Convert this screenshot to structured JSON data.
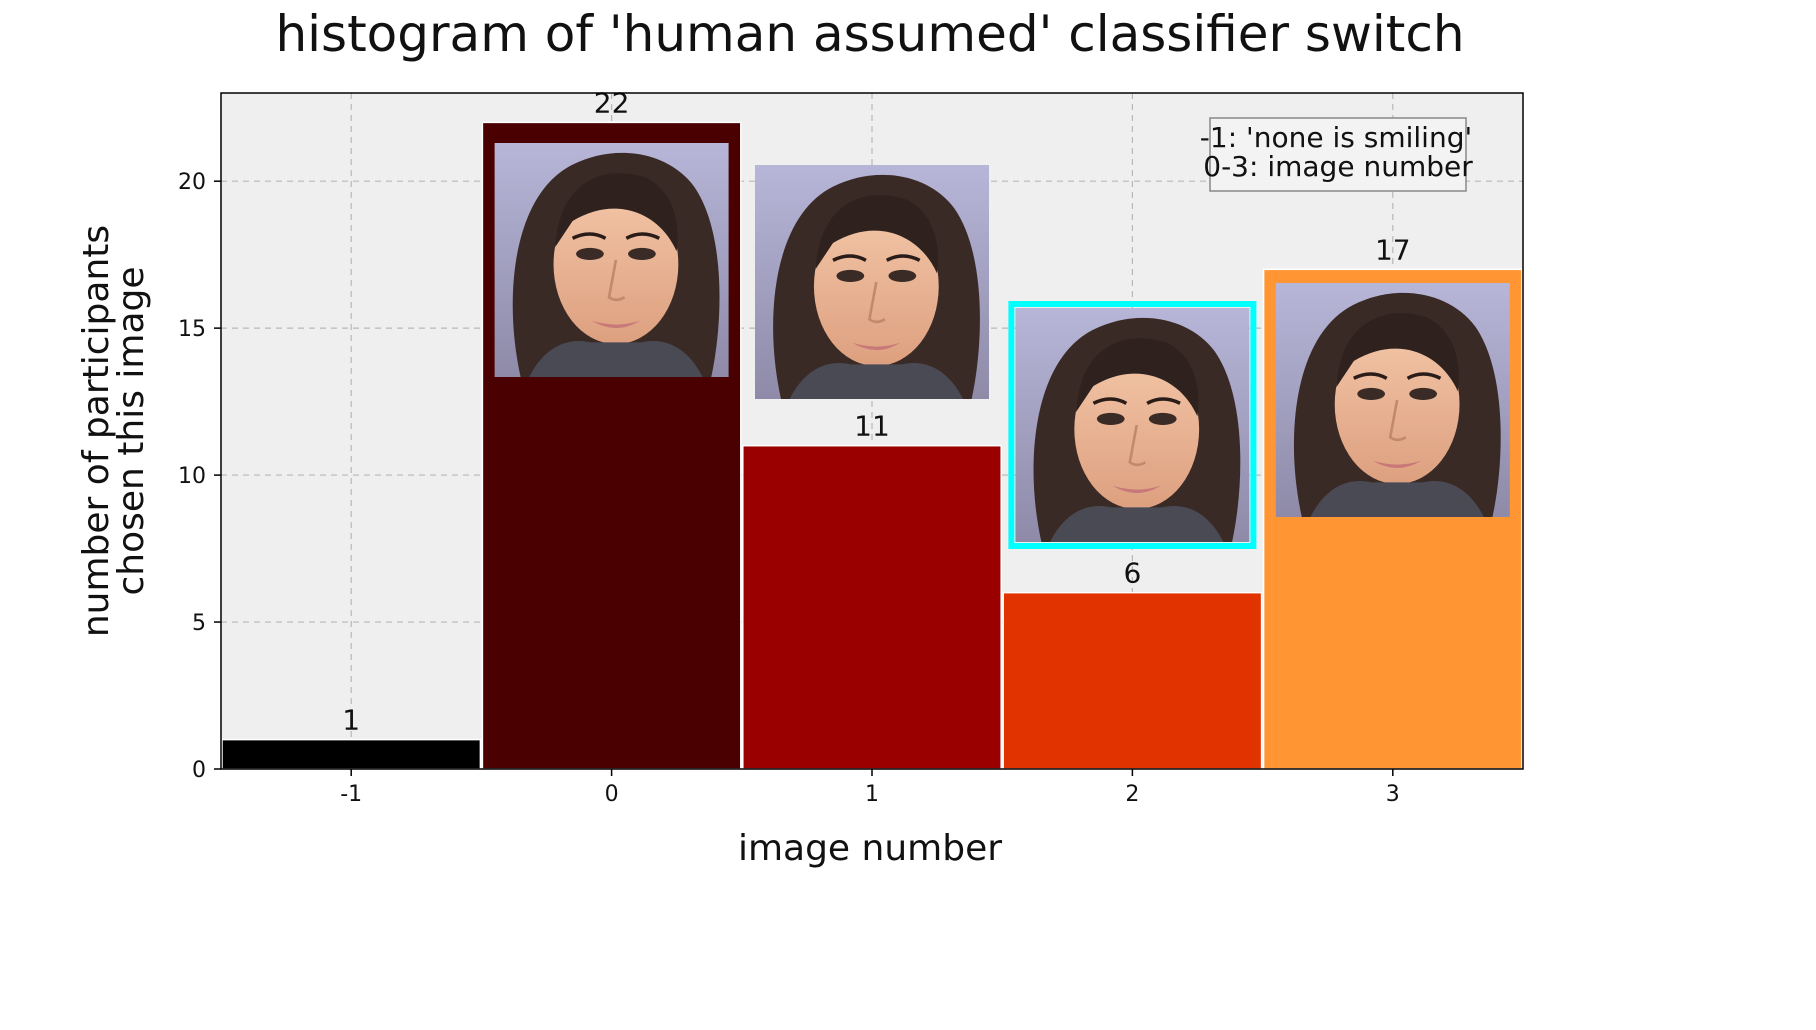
{
  "chart_data": {
    "type": "bar",
    "title": "histogram of 'human assumed' classifier switch",
    "xlabel": "image number",
    "ylabel": [
      "number of participants",
      "chosen this image"
    ],
    "categories": [
      "-1",
      "0",
      "1",
      "2",
      "3"
    ],
    "values": [
      1,
      22,
      11,
      6,
      17
    ],
    "bar_colors": [
      "#000000",
      "#4a0000",
      "#9a0000",
      "#e13300",
      "#ff9633"
    ],
    "ylim": [
      0,
      23
    ],
    "yticks": [
      0,
      5,
      10,
      15,
      20
    ],
    "grid": true,
    "plot_background": "#efefef",
    "legend": {
      "position": "top-right",
      "lines": [
        "-1: 'none is smiling'",
        "0-3: image number"
      ]
    },
    "thumbnails": [
      {
        "category": "0",
        "highlighted": false
      },
      {
        "category": "1",
        "highlighted": false
      },
      {
        "category": "2",
        "highlighted": true,
        "highlight_color": "#00ffff"
      },
      {
        "category": "3",
        "highlighted": false
      }
    ]
  }
}
